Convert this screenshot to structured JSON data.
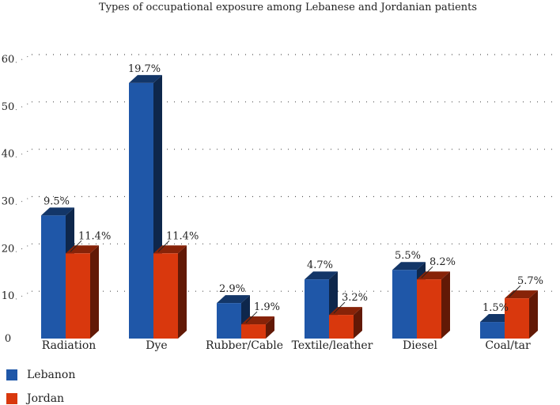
{
  "chart_data": {
    "type": "bar",
    "title": "Types of occupational exposure among Lebanese and Jordanian patients",
    "categories": [
      "Radiation",
      "Dye",
      "Rubber/Cable",
      "Textile/leather",
      "Diesel",
      "Coal/tar"
    ],
    "series": [
      {
        "name": "Lebanon",
        "color": "#1f57a8",
        "values": [
          26,
          54,
          7.5,
          12.5,
          14.5,
          3.5
        ],
        "labels": [
          "9.5%",
          "19.7%",
          "2.9%",
          "4.7%",
          "5.5%",
          "1.5%"
        ]
      },
      {
        "name": "Jordan",
        "color": "#d9380d",
        "values": [
          18,
          18,
          3,
          5,
          12.5,
          8.5
        ],
        "labels": [
          "11.4%",
          "11.4%",
          "1.9%",
          "3.2%",
          "8.2%",
          "5.7%"
        ]
      }
    ],
    "yticks": [
      0,
      10,
      20,
      30,
      40,
      50,
      60
    ],
    "ylim": [
      0,
      60
    ],
    "grid": true,
    "legend_position": "bottom-left"
  }
}
